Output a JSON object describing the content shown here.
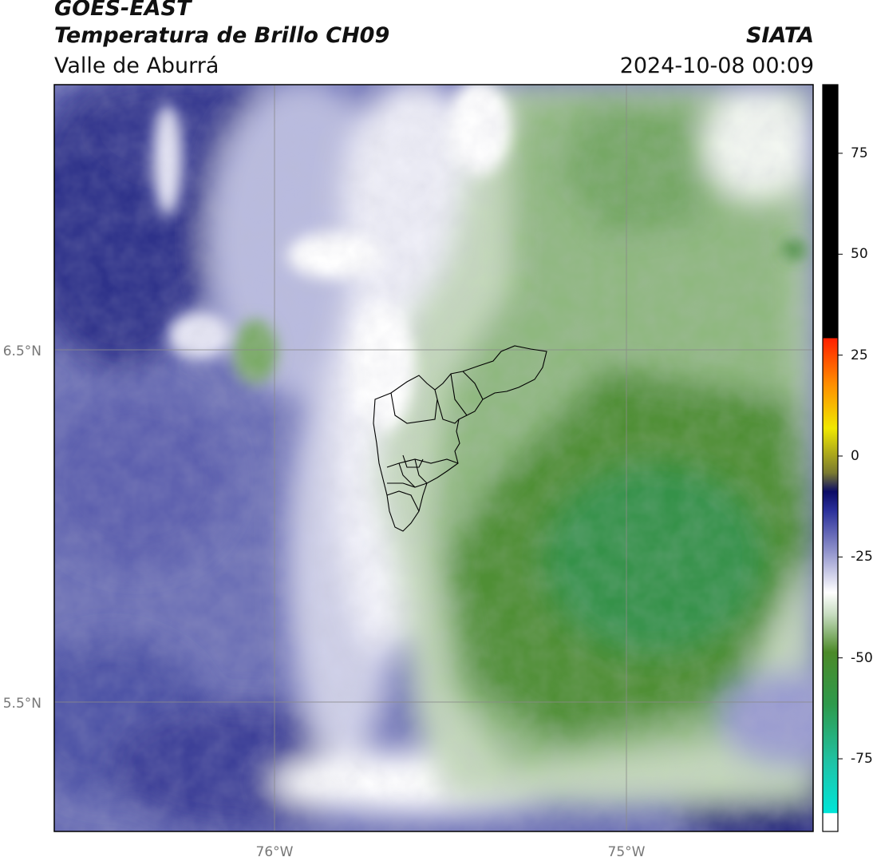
{
  "header": {
    "satellite": "GOES-EAST",
    "product": "Temperatura de Brillo CH09",
    "region": "Valle de Aburrá",
    "agency": "SIATA",
    "timestamp": "2024-10-08 00:09"
  },
  "map": {
    "lat_labels": [
      "6.5°N",
      "5.5°N"
    ],
    "lon_labels": [
      "76°W",
      "75°W"
    ],
    "grid": true,
    "colors": {
      "cold_land_green": "#3a8a2e",
      "mid_green": "#7fae6d",
      "pale_green": "#d9e6d2",
      "white": "#ffffff",
      "lavender": "#c9c9e3",
      "blue": "#6f72b8",
      "deep_blue": "#23247e"
    }
  },
  "colorbar": {
    "ticks": [
      "75",
      "50",
      "25",
      "0",
      "-25",
      "-50",
      "-75"
    ],
    "tick_values": [
      75,
      50,
      25,
      0,
      -25,
      -50,
      -75
    ],
    "range": [
      -93,
      92
    ]
  }
}
